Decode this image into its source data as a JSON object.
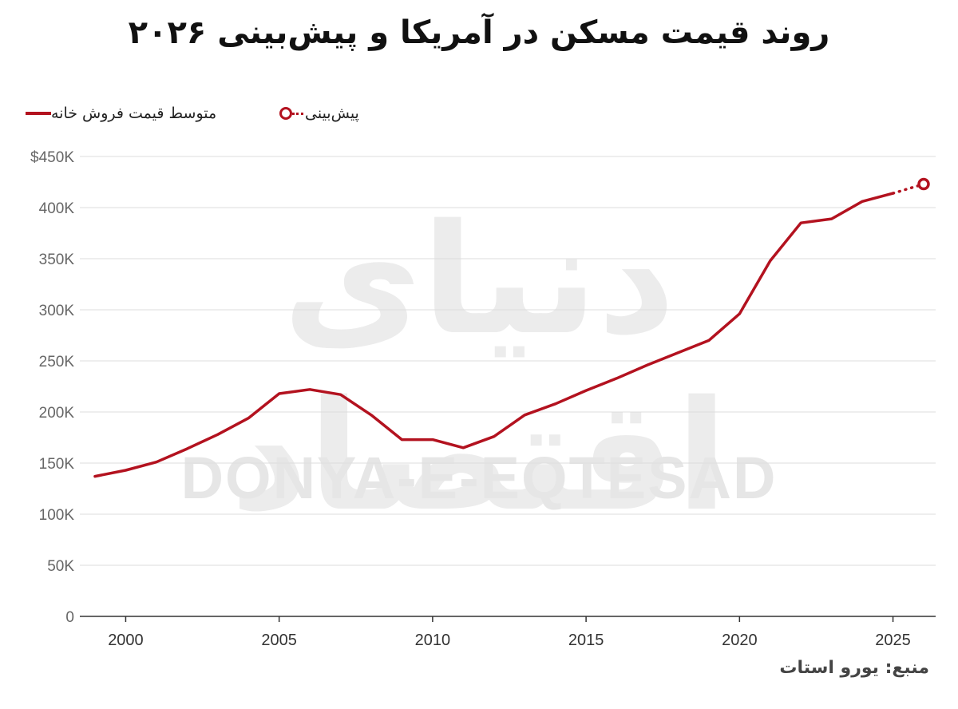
{
  "title": "روند قیمت مسکن در آمریکا و پیش‌بینی ۲۰۲۶",
  "legend": {
    "actual_label": "متوسط قیمت فروش خانه",
    "forecast_label": "پیش‌بینی"
  },
  "source": "منبع: یورو استات",
  "watermark": {
    "fa": "دنیای اقتصاد",
    "en": "DONYA-E-EQTESAD"
  },
  "colors": {
    "line": "#b3121f",
    "grid": "#dddddd",
    "axis_text": "#666666"
  },
  "chart_data": {
    "type": "line",
    "title": "روند قیمت مسکن در آمریکا و پیش‌بینی ۲۰۲۶",
    "xlim": [
      1999,
      2026
    ],
    "ylim": [
      0,
      450000
    ],
    "grid": true,
    "legend_position": "top-left",
    "x_ticks": [
      2000,
      2005,
      2010,
      2015,
      2020,
      2025
    ],
    "x_tick_labels": [
      "2000",
      "2005",
      "2010",
      "2015",
      "2020",
      "2025"
    ],
    "y_ticks": [
      0,
      50000,
      100000,
      150000,
      200000,
      250000,
      300000,
      350000,
      400000,
      450000
    ],
    "y_tick_labels": [
      "0",
      "50K",
      "100K",
      "150K",
      "200K",
      "250K",
      "300K",
      "350K",
      "400K",
      "$450K"
    ],
    "series": [
      {
        "name": "متوسط قیمت فروش خانه",
        "style": "solid",
        "x": [
          1999,
          2000,
          2001,
          2002,
          2003,
          2004,
          2005,
          2006,
          2007,
          2008,
          2009,
          2010,
          2011,
          2012,
          2013,
          2014,
          2015,
          2016,
          2017,
          2018,
          2019,
          2020,
          2021,
          2022,
          2023,
          2024,
          2025
        ],
        "y": [
          137000,
          143000,
          151000,
          164000,
          178000,
          194000,
          218000,
          222000,
          217000,
          197000,
          173000,
          173000,
          165000,
          176000,
          197000,
          208000,
          221000,
          233000,
          246000,
          258000,
          270000,
          296000,
          348000,
          385000,
          389000,
          406000,
          414000
        ]
      },
      {
        "name": "پیش‌بینی",
        "style": "dotted",
        "x": [
          2025,
          2026
        ],
        "y": [
          414000,
          423000
        ]
      }
    ]
  }
}
